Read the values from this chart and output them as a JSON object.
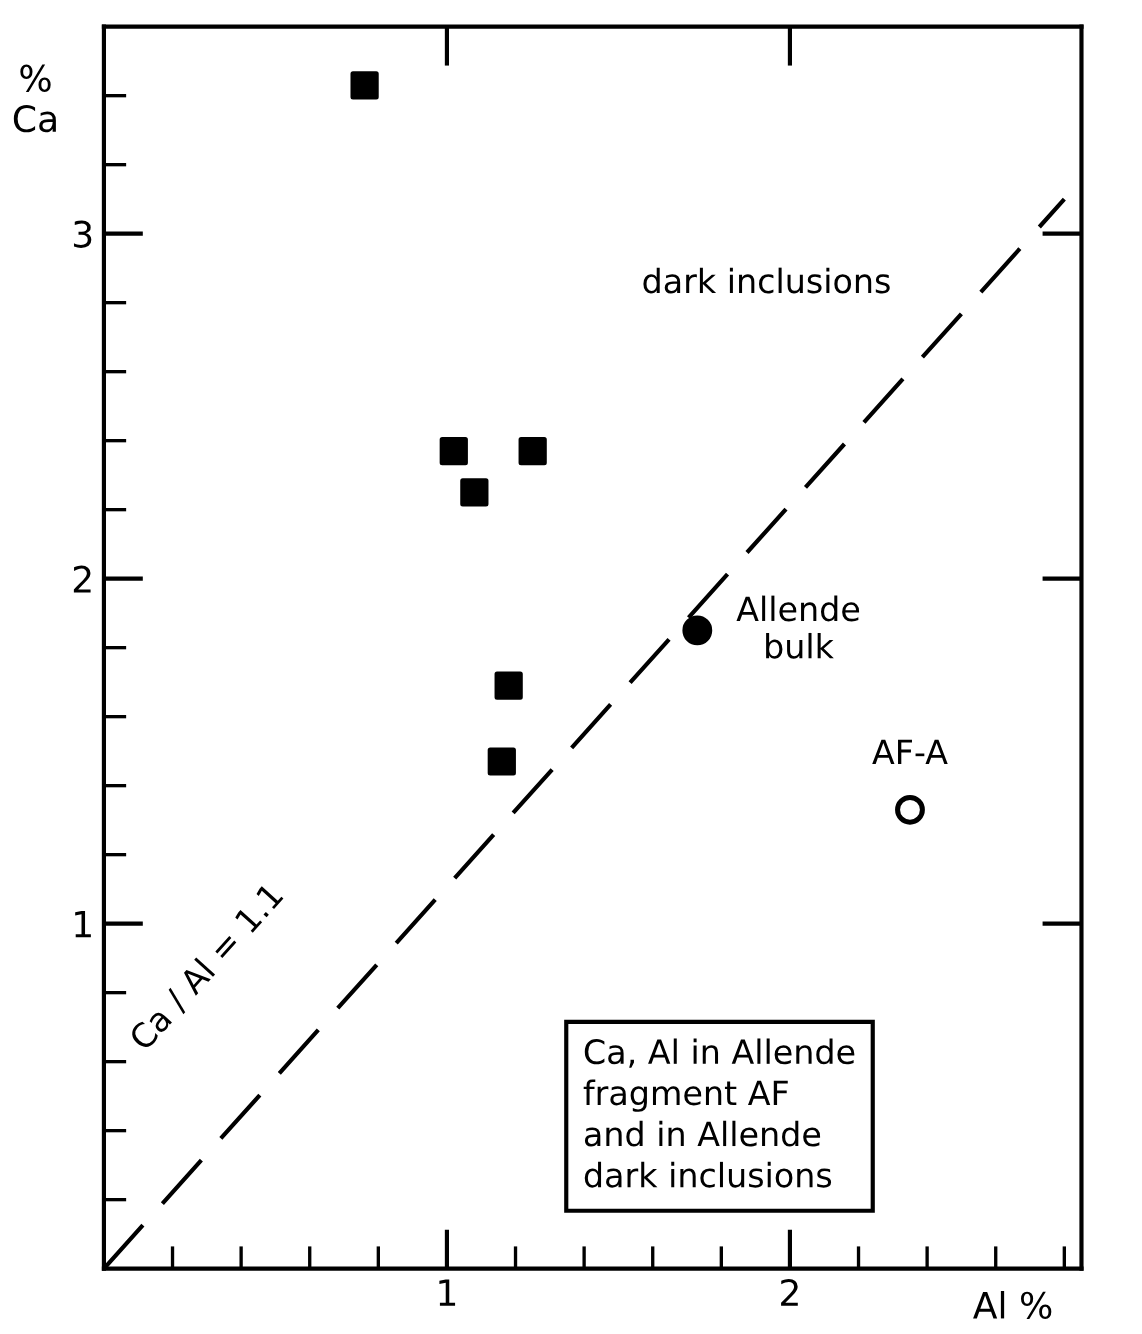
{
  "chart_data": {
    "type": "scatter",
    "xlabel": "Al %",
    "ylabel": "%\nCa",
    "xlim": [
      0,
      2.85
    ],
    "ylim": [
      0,
      3.6
    ],
    "xticks": [
      {
        "value": 0.2,
        "label": null
      },
      {
        "value": 0.4,
        "label": null
      },
      {
        "value": 0.6,
        "label": null
      },
      {
        "value": 0.8,
        "label": null
      },
      1,
      {
        "value": 1.2,
        "label": null
      },
      {
        "value": 1.4,
        "label": null
      },
      {
        "value": 1.6,
        "label": null
      },
      {
        "value": 1.8,
        "label": null
      },
      2,
      {
        "value": 2.2,
        "label": null
      },
      {
        "value": 2.4,
        "label": null
      },
      {
        "value": 2.6,
        "label": null
      },
      {
        "value": 2.8,
        "label": null
      }
    ],
    "yticks": [
      {
        "value": 0.2,
        "label": null
      },
      {
        "value": 0.4,
        "label": null
      },
      {
        "value": 0.6,
        "label": null
      },
      {
        "value": 0.8,
        "label": null
      },
      1,
      {
        "value": 1.2,
        "label": null
      },
      {
        "value": 1.4,
        "label": null
      },
      {
        "value": 1.6,
        "label": null
      },
      {
        "value": 1.8,
        "label": null
      },
      2,
      {
        "value": 2.2,
        "label": null
      },
      {
        "value": 2.4,
        "label": null
      },
      {
        "value": 2.6,
        "label": null
      },
      {
        "value": 2.8,
        "label": null
      },
      3,
      {
        "value": 3.2,
        "label": null
      },
      {
        "value": 3.4,
        "label": null
      }
    ],
    "grid": false,
    "series": [
      {
        "marker": "square",
        "color": "#000000",
        "x": [
          0.76,
          1.02,
          1.25,
          1.08,
          1.18,
          1.16
        ],
        "values": [
          3.43,
          2.37,
          2.37,
          2.25,
          1.69,
          1.47
        ]
      },
      {
        "marker": "circle",
        "color": "#000000",
        "x": [
          1.73
        ],
        "values": [
          1.85
        ]
      },
      {
        "marker": "circle",
        "color": "#ffffff",
        "x": [
          2.35
        ],
        "values": [
          1.33
        ]
      },
      {
        "type": "line",
        "marker": "none",
        "line_style": "dashed",
        "color": "#000000",
        "x": [
          0,
          2.8
        ],
        "values": [
          0,
          3.1
        ]
      }
    ],
    "annotations": [
      "dark inclusions",
      {
        "text": "Allende\nbulk",
        "x": 1.73,
        "y": 1.85
      },
      {
        "text": "AF-A",
        "x": 2.35,
        "y": 1.33
      },
      {
        "text": "Ca / Al = 1.1",
        "x": 0.45,
        "y": 0.5
      },
      "Ca, Al in Allende\nfragment AF\nand in Allende\ndark inclusions"
    ]
  }
}
